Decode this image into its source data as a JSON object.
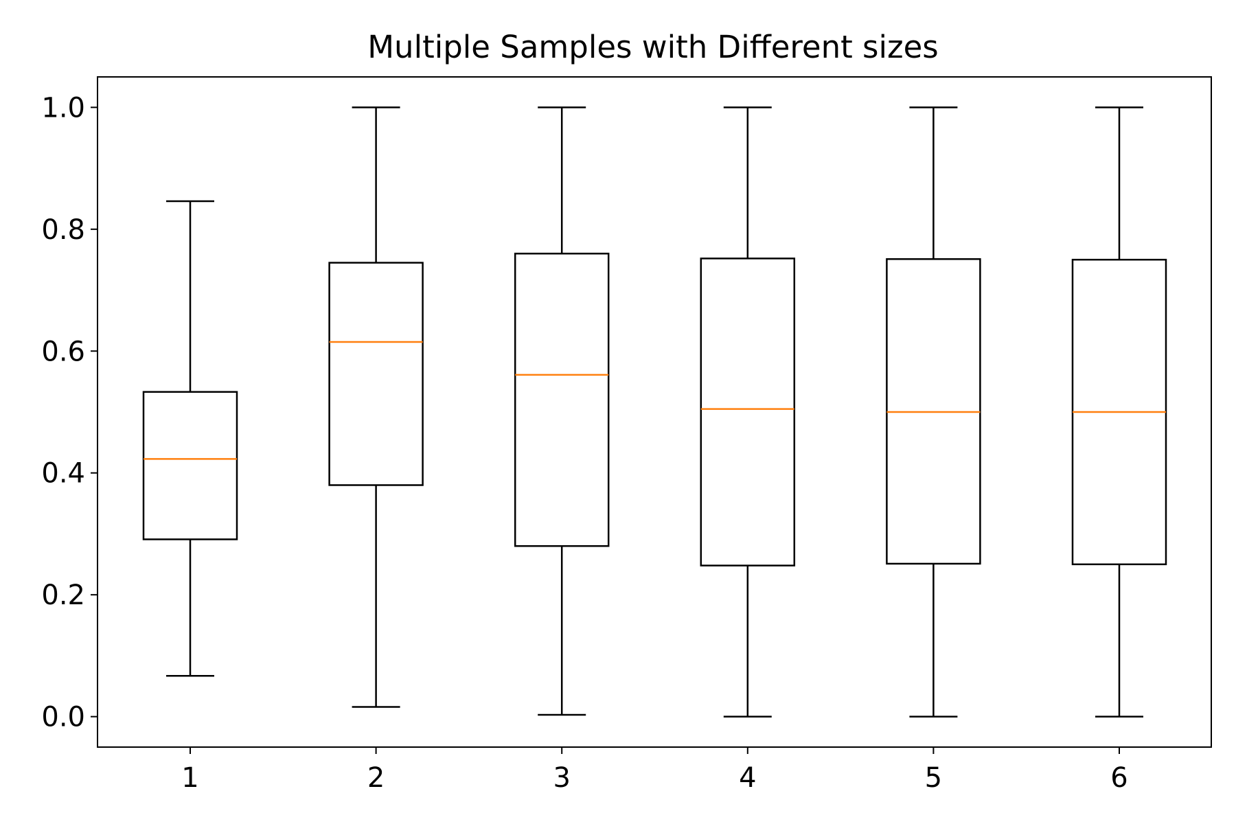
{
  "chart_data": {
    "type": "box",
    "title": "Multiple Samples with Different sizes",
    "xlabel": "",
    "ylabel": "",
    "categories": [
      "1",
      "2",
      "3",
      "4",
      "5",
      "6"
    ],
    "ylim": [
      -0.05,
      1.05
    ],
    "y_ticks": [
      "0.0",
      "0.2",
      "0.4",
      "0.6",
      "0.8",
      "1.0"
    ],
    "grid": false,
    "legend": "none",
    "colors": {
      "box": "#000000",
      "median": "#ff7f0e",
      "whisker": "#000000"
    },
    "boxes": [
      {
        "label": "1",
        "whislo": 0.067,
        "q1": 0.291,
        "med": 0.423,
        "q3": 0.533,
        "whishi": 0.846
      },
      {
        "label": "2",
        "whislo": 0.016,
        "q1": 0.38,
        "med": 0.615,
        "q3": 0.745,
        "whishi": 1.0
      },
      {
        "label": "3",
        "whislo": 0.003,
        "q1": 0.28,
        "med": 0.561,
        "q3": 0.76,
        "whishi": 1.0
      },
      {
        "label": "4",
        "whislo": 0.0,
        "q1": 0.248,
        "med": 0.505,
        "q3": 0.752,
        "whishi": 1.0
      },
      {
        "label": "5",
        "whislo": 0.0,
        "q1": 0.251,
        "med": 0.5,
        "q3": 0.751,
        "whishi": 1.0
      },
      {
        "label": "6",
        "whislo": 0.0,
        "q1": 0.25,
        "med": 0.5,
        "q3": 0.75,
        "whishi": 1.0
      }
    ]
  }
}
